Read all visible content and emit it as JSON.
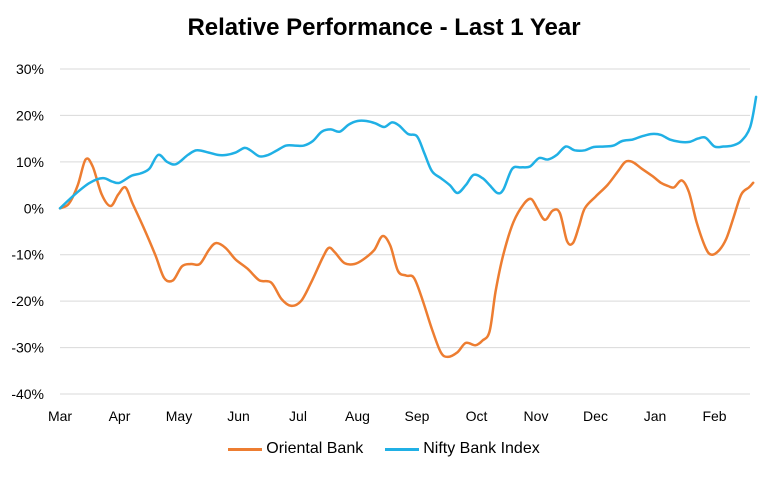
{
  "chart_data": {
    "type": "line",
    "title": "Relative Performance - Last 1 Year",
    "xlabel": "",
    "ylabel": "",
    "x_ticks": [
      "Mar",
      "Apr",
      "May",
      "Jun",
      "Jul",
      "Aug",
      "Sep",
      "Oct",
      "Nov",
      "Dec",
      "Jan",
      "Feb"
    ],
    "y_ticks": [
      "30%",
      "20%",
      "10%",
      "0%",
      "-10%",
      "-20%",
      "-30%",
      "-40%"
    ],
    "ylim": [
      -40,
      30
    ],
    "xlim": [
      0,
      11.7
    ],
    "grid": "horizontal",
    "legend": "bottom",
    "series": [
      {
        "name": "Oriental Bank",
        "color": "#ED7D31",
        "points": [
          [
            0.0,
            0
          ],
          [
            0.15,
            1
          ],
          [
            0.3,
            5
          ],
          [
            0.43,
            10.5
          ],
          [
            0.55,
            9
          ],
          [
            0.7,
            3
          ],
          [
            0.85,
            0.5
          ],
          [
            0.98,
            3
          ],
          [
            1.1,
            4.5
          ],
          [
            1.22,
            1
          ],
          [
            1.4,
            -4
          ],
          [
            1.6,
            -10
          ],
          [
            1.75,
            -15
          ],
          [
            1.9,
            -15.5
          ],
          [
            2.05,
            -12.5
          ],
          [
            2.2,
            -12
          ],
          [
            2.35,
            -12
          ],
          [
            2.5,
            -9
          ],
          [
            2.62,
            -7.5
          ],
          [
            2.78,
            -8.5
          ],
          [
            2.95,
            -11
          ],
          [
            3.15,
            -13
          ],
          [
            3.35,
            -15.5
          ],
          [
            3.55,
            -16
          ],
          [
            3.72,
            -19.5
          ],
          [
            3.88,
            -21
          ],
          [
            4.05,
            -20
          ],
          [
            4.22,
            -16
          ],
          [
            4.42,
            -10.5
          ],
          [
            4.52,
            -8.5
          ],
          [
            4.62,
            -9.5
          ],
          [
            4.78,
            -11.8
          ],
          [
            4.95,
            -12
          ],
          [
            5.1,
            -11
          ],
          [
            5.28,
            -9
          ],
          [
            5.42,
            -6
          ],
          [
            5.55,
            -8
          ],
          [
            5.68,
            -13.5
          ],
          [
            5.82,
            -14.5
          ],
          [
            5.95,
            -15
          ],
          [
            6.1,
            -20
          ],
          [
            6.25,
            -26
          ],
          [
            6.4,
            -31
          ],
          [
            6.52,
            -32
          ],
          [
            6.68,
            -31
          ],
          [
            6.82,
            -29
          ],
          [
            6.98,
            -29.5
          ],
          [
            7.1,
            -28.5
          ],
          [
            7.22,
            -26.5
          ],
          [
            7.32,
            -18
          ],
          [
            7.45,
            -10
          ],
          [
            7.62,
            -3
          ],
          [
            7.8,
            1
          ],
          [
            7.92,
            2
          ],
          [
            8.02,
            0
          ],
          [
            8.15,
            -2.5
          ],
          [
            8.28,
            -0.5
          ],
          [
            8.4,
            -1
          ],
          [
            8.52,
            -7
          ],
          [
            8.62,
            -7.5
          ],
          [
            8.72,
            -4
          ],
          [
            8.82,
            0
          ],
          [
            9.0,
            2.5
          ],
          [
            9.2,
            5
          ],
          [
            9.38,
            8
          ],
          [
            9.5,
            10
          ],
          [
            9.62,
            10
          ],
          [
            9.78,
            8.5
          ],
          [
            9.95,
            7
          ],
          [
            10.1,
            5.5
          ],
          [
            10.22,
            4.8
          ],
          [
            10.32,
            4.5
          ],
          [
            10.45,
            6
          ],
          [
            10.57,
            3.5
          ],
          [
            10.7,
            -3
          ],
          [
            10.85,
            -8.5
          ],
          [
            10.95,
            -10
          ],
          [
            11.08,
            -9
          ],
          [
            11.2,
            -6.5
          ],
          [
            11.32,
            -2
          ],
          [
            11.45,
            3
          ],
          [
            11.58,
            4.5
          ],
          [
            11.65,
            5.5
          ]
        ]
      },
      {
        "name": "Nifty Bank Index",
        "color": "#20B0E5",
        "points": [
          [
            0.0,
            0
          ],
          [
            0.25,
            3
          ],
          [
            0.5,
            5.5
          ],
          [
            0.72,
            6.5
          ],
          [
            0.87,
            5.8
          ],
          [
            1.0,
            5.5
          ],
          [
            1.2,
            7
          ],
          [
            1.35,
            7.5
          ],
          [
            1.5,
            8.5
          ],
          [
            1.65,
            11.5
          ],
          [
            1.8,
            10
          ],
          [
            1.95,
            9.5
          ],
          [
            2.15,
            11.5
          ],
          [
            2.3,
            12.5
          ],
          [
            2.5,
            12
          ],
          [
            2.65,
            11.5
          ],
          [
            2.8,
            11.5
          ],
          [
            2.95,
            12
          ],
          [
            3.1,
            13
          ],
          [
            3.2,
            12.5
          ],
          [
            3.35,
            11.2
          ],
          [
            3.5,
            11.5
          ],
          [
            3.65,
            12.5
          ],
          [
            3.8,
            13.5
          ],
          [
            3.95,
            13.5
          ],
          [
            4.1,
            13.5
          ],
          [
            4.25,
            14.5
          ],
          [
            4.4,
            16.5
          ],
          [
            4.55,
            17
          ],
          [
            4.7,
            16.5
          ],
          [
            4.85,
            18
          ],
          [
            5.0,
            18.8
          ],
          [
            5.15,
            18.8
          ],
          [
            5.3,
            18.3
          ],
          [
            5.45,
            17.5
          ],
          [
            5.58,
            18.5
          ],
          [
            5.7,
            17.8
          ],
          [
            5.85,
            16
          ],
          [
            6.0,
            15.5
          ],
          [
            6.12,
            12
          ],
          [
            6.25,
            8
          ],
          [
            6.4,
            6.5
          ],
          [
            6.55,
            5
          ],
          [
            6.68,
            3.3
          ],
          [
            6.82,
            5
          ],
          [
            6.95,
            7.2
          ],
          [
            7.1,
            6.5
          ],
          [
            7.22,
            5
          ],
          [
            7.35,
            3.3
          ],
          [
            7.45,
            4
          ],
          [
            7.6,
            8.5
          ],
          [
            7.75,
            8.8
          ],
          [
            7.9,
            9
          ],
          [
            8.05,
            10.8
          ],
          [
            8.2,
            10.5
          ],
          [
            8.35,
            11.5
          ],
          [
            8.5,
            13.3
          ],
          [
            8.65,
            12.5
          ],
          [
            8.82,
            12.5
          ],
          [
            8.97,
            13.2
          ],
          [
            9.15,
            13.3
          ],
          [
            9.3,
            13.5
          ],
          [
            9.45,
            14.5
          ],
          [
            9.62,
            14.8
          ],
          [
            9.78,
            15.5
          ],
          [
            9.95,
            16
          ],
          [
            10.1,
            15.8
          ],
          [
            10.25,
            14.8
          ],
          [
            10.42,
            14.3
          ],
          [
            10.58,
            14.3
          ],
          [
            10.72,
            15
          ],
          [
            10.85,
            15.2
          ],
          [
            11.0,
            13.3
          ],
          [
            11.15,
            13.3
          ],
          [
            11.3,
            13.5
          ],
          [
            11.45,
            14.5
          ],
          [
            11.6,
            17.5
          ],
          [
            11.7,
            24
          ]
        ]
      }
    ]
  }
}
